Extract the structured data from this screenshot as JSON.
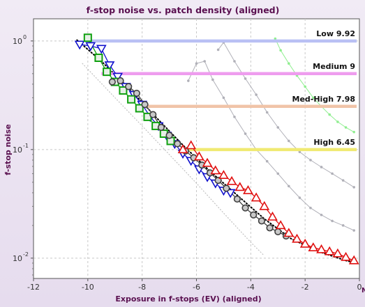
{
  "chart_data": {
    "type": "scatter",
    "title": "f-stop noise vs. patch density (aligned)",
    "xlabel": "Exposure in f-stops (EV) (aligned)",
    "ylabel": "f-stop noise",
    "xlim": [
      -12,
      0
    ],
    "ylim": [
      0.0065,
      1.6
    ],
    "yscale": "log",
    "grid": true,
    "x_ticks": [
      "-12",
      "-10",
      "-8",
      "-6",
      "-4",
      "-2",
      "0"
    ],
    "x_tick_values": [
      -12,
      -10,
      -8,
      -6,
      -4,
      -2,
      0
    ],
    "y_ticks": [
      {
        "value": 1,
        "base": "10",
        "exp": "0"
      },
      {
        "value": 0.1,
        "base": "10",
        "exp": "-1"
      },
      {
        "value": 0.01,
        "base": "10",
        "exp": "-2"
      }
    ],
    "corner_label": "N",
    "threshold_lines": [
      {
        "label": "Low  9.92",
        "y": 1.0,
        "x_start": -10.0,
        "color": "#b9c0f4"
      },
      {
        "label": "Medium  9",
        "y": 0.5,
        "x_start": -9.5,
        "color": "#ee9cee"
      },
      {
        "label": "Med-High  7.98",
        "y": 0.25,
        "x_start": -8.2,
        "color": "#f0c4a8"
      },
      {
        "label": "High  6.45",
        "y": 0.1,
        "x_start": -6.5,
        "color": "#f0ea72"
      }
    ],
    "series": [
      {
        "marker": "triangle-down",
        "color": "#1010cc",
        "x": [
          -10.3,
          -9.9,
          -9.5,
          -9.2,
          -8.9,
          -8.6,
          -8.3,
          -8.0,
          -7.7,
          -7.4,
          -7.1,
          -6.8,
          -6.5,
          -6.2,
          -5.9,
          -5.6,
          -5.3,
          -5.0,
          -4.75
        ],
        "y": [
          0.93,
          0.9,
          0.85,
          0.6,
          0.47,
          0.38,
          0.32,
          0.26,
          0.2,
          0.165,
          0.135,
          0.113,
          0.092,
          0.079,
          0.066,
          0.056,
          0.049,
          0.042,
          0.04
        ]
      },
      {
        "marker": "square",
        "color": "#10a010",
        "x": [
          -10.0,
          -9.6,
          -9.3,
          -9.0,
          -8.7,
          -8.4,
          -8.1,
          -7.8,
          -7.5,
          -7.2,
          -6.95
        ],
        "y": [
          1.07,
          0.7,
          0.52,
          0.42,
          0.35,
          0.29,
          0.24,
          0.2,
          0.165,
          0.14,
          0.12
        ]
      },
      {
        "marker": "circle",
        "color": "#404040",
        "x": [
          -9.1,
          -8.8,
          -8.5,
          -8.2,
          -7.9,
          -7.6,
          -7.3,
          -7.0,
          -6.7,
          -6.4,
          -6.1,
          -5.8,
          -5.5,
          -5.2,
          -4.9,
          -4.5,
          -4.2,
          -3.9,
          -3.6,
          -3.3,
          -3.0,
          -2.7
        ],
        "y": [
          0.42,
          0.43,
          0.38,
          0.33,
          0.26,
          0.21,
          0.16,
          0.135,
          0.113,
          0.097,
          0.084,
          0.072,
          0.061,
          0.052,
          0.044,
          0.035,
          0.029,
          0.025,
          0.022,
          0.019,
          0.0175,
          0.016
        ]
      },
      {
        "marker": "triangle-up",
        "color": "#e01010",
        "x": [
          -6.5,
          -6.2,
          -5.9,
          -5.6,
          -5.3,
          -5.0,
          -4.7,
          -4.4,
          -4.1,
          -3.8,
          -3.5,
          -3.2,
          -2.9,
          -2.6,
          -2.3,
          -2.0,
          -1.7,
          -1.4,
          -1.1,
          -0.8,
          -0.5,
          -0.2
        ],
        "y": [
          0.1,
          0.109,
          0.086,
          0.075,
          0.064,
          0.058,
          0.051,
          0.045,
          0.042,
          0.036,
          0.03,
          0.024,
          0.02,
          0.017,
          0.015,
          0.0135,
          0.0125,
          0.012,
          0.0115,
          0.011,
          0.0102,
          0.0095
        ]
      }
    ],
    "fit_lines": [
      {
        "color": "#000000",
        "style": "dotted",
        "x": [
          -10.4,
          -9.5,
          -8.5,
          -7.5,
          -6.5,
          -5.5,
          -4.5,
          -3.5,
          -2.5,
          -1.5,
          -0.5,
          -0.1
        ],
        "y": [
          1.02,
          0.65,
          0.37,
          0.2,
          0.11,
          0.063,
          0.038,
          0.023,
          0.015,
          0.0115,
          0.0095,
          0.009
        ]
      },
      {
        "color": "#c0c0c0",
        "style": "dotted",
        "x": [
          -10.2,
          -9.0,
          -8.0,
          -7.0,
          -6.0,
          -5.0,
          -4.0,
          -3.5
        ],
        "y": [
          0.62,
          0.3,
          0.165,
          0.09,
          0.049,
          0.026,
          0.014,
          0.0105
        ]
      }
    ],
    "faint_series": [
      {
        "color": "#b0b0b8",
        "x": [
          -6.3,
          -6.0,
          -5.7,
          -5.4,
          -5.0,
          -4.6,
          -4.2,
          -3.8,
          -3.4,
          -3.0,
          -2.6,
          -2.2,
          -1.8,
          -1.4,
          -1.0,
          -0.6,
          -0.2
        ],
        "y": [
          0.43,
          0.62,
          0.65,
          0.44,
          0.3,
          0.2,
          0.14,
          0.1,
          0.078,
          0.06,
          0.046,
          0.036,
          0.029,
          0.025,
          0.022,
          0.02,
          0.018
        ]
      },
      {
        "color": "#b0b0b8",
        "x": [
          -5.2,
          -5.0,
          -4.6,
          -4.2,
          -3.8,
          -3.4,
          -3.0,
          -2.6,
          -2.2,
          -1.8,
          -1.4,
          -1.0,
          -0.6,
          -0.2
        ],
        "y": [
          0.83,
          0.97,
          0.65,
          0.45,
          0.32,
          0.22,
          0.16,
          0.12,
          0.095,
          0.08,
          0.069,
          0.06,
          0.052,
          0.045
        ]
      },
      {
        "color": "#90ee90",
        "x": [
          -3.1,
          -2.9,
          -2.6,
          -2.3,
          -2.0,
          -1.7,
          -1.4,
          -1.1,
          -0.8,
          -0.5,
          -0.2
        ],
        "y": [
          1.05,
          0.82,
          0.62,
          0.48,
          0.38,
          0.3,
          0.25,
          0.21,
          0.18,
          0.16,
          0.145
        ]
      }
    ]
  }
}
